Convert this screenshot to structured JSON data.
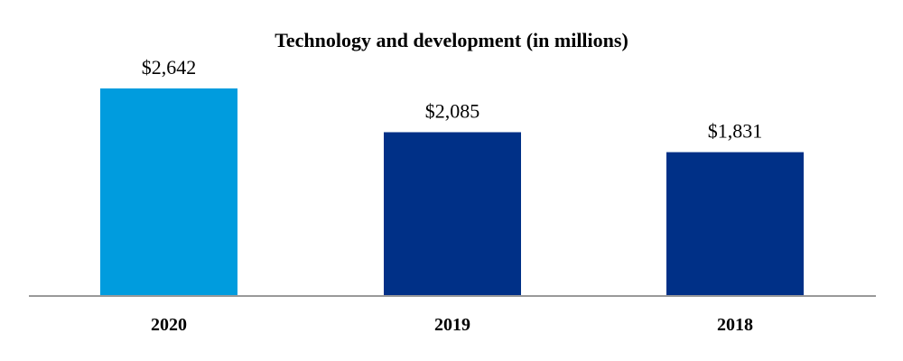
{
  "chart_data": {
    "type": "bar",
    "title": "Technology and development (in millions)",
    "categories": [
      "2020",
      "2019",
      "2018"
    ],
    "values": [
      2642,
      2085,
      1831
    ],
    "value_labels": [
      "$2,642",
      "$2,085",
      "$1,831"
    ],
    "bar_colors": [
      "#009CDE",
      "#003087",
      "#003087"
    ],
    "ylim": [
      0,
      2642
    ],
    "xlabel": "",
    "ylabel": "",
    "grid": false,
    "legend": "none"
  },
  "colors": {
    "axis": "#999999",
    "text": "#000000"
  }
}
